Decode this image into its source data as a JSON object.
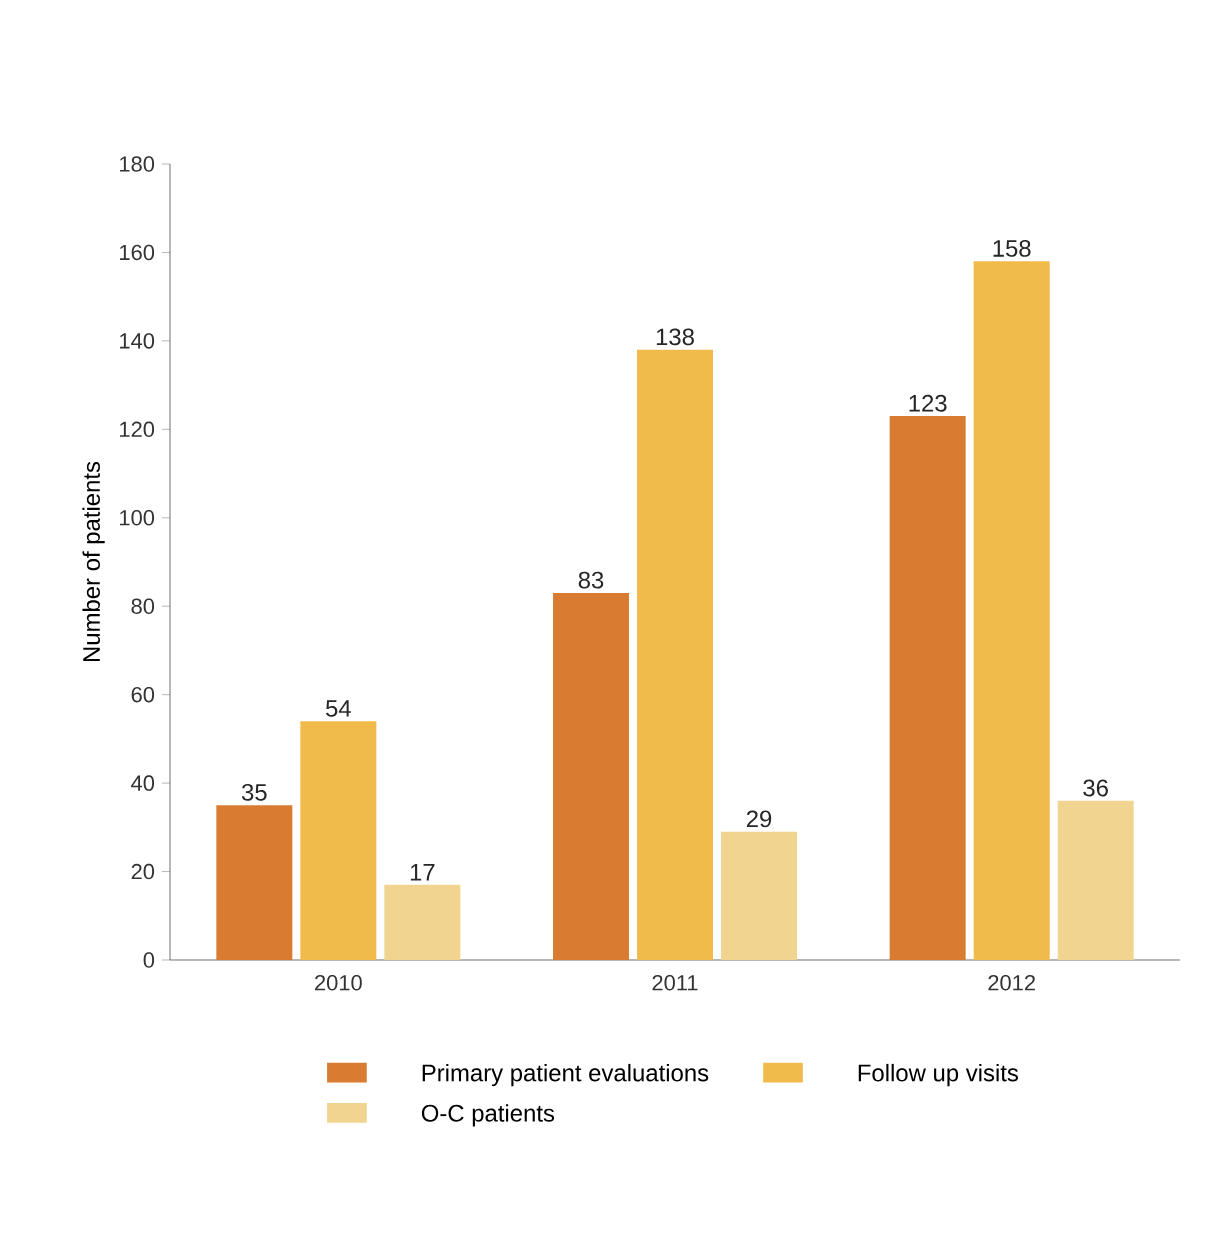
{
  "chart_data": {
    "type": "bar",
    "ylabel": "Number of patients",
    "categories": [
      "2010",
      "2011",
      "2012"
    ],
    "series": [
      {
        "name": "Primary patient evaluations",
        "color": "#d97b30",
        "values": [
          35,
          83,
          123
        ]
      },
      {
        "name": "Follow up visits",
        "color": "#f0bb4a",
        "values": [
          54,
          138,
          158
        ]
      },
      {
        "name": "O-C patients",
        "color": "#f2d491",
        "values": [
          17,
          29,
          36
        ]
      }
    ],
    "ylim": [
      0,
      180
    ],
    "yticks": [
      0,
      20,
      40,
      60,
      80,
      100,
      120,
      140,
      160,
      180
    ],
    "data_labels": true,
    "legend": "bottom",
    "grid": false
  }
}
